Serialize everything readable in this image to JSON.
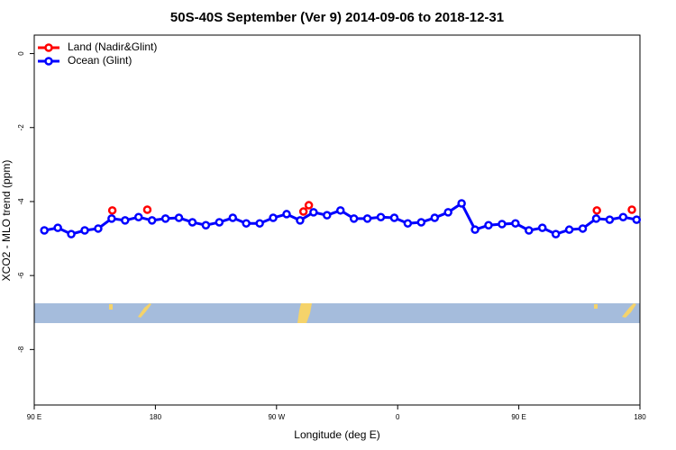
{
  "chart_data": {
    "type": "line",
    "title": "50S-40S September (Ver 9)   2014-09-06 to 2018-12-31",
    "x_label": "Longitude (deg E)",
    "y_label": "XCO2 - MLO trend (ppm)",
    "xlim": [
      90,
      540
    ],
    "xticks": [
      {
        "value": 90,
        "label": "90 E"
      },
      180,
      {
        "value": 270,
        "label": "90 W"
      },
      {
        "value": 360,
        "label": "0"
      },
      {
        "value": 450,
        "label": "90 E"
      },
      {
        "value": 540,
        "label": "180"
      }
    ],
    "ylim": [
      -9.5,
      0.5
    ],
    "yticks": [
      0,
      -2,
      -4,
      -6,
      -8
    ],
    "legend": "top-left",
    "series": [
      {
        "name": "Land (Nadir&Glint)",
        "color": "#ff0000",
        "line": false,
        "x": [
          148,
          174,
          290,
          294,
          508,
          534
        ],
        "values": [
          -4.24,
          -4.22,
          -4.27,
          -4.1,
          -4.24,
          -4.22
        ]
      },
      {
        "name": "Ocean (Glint)",
        "color": "#0000ff",
        "line": true,
        "x": [
          97.5,
          107.5,
          117.5,
          127.5,
          137.5,
          147.5,
          157.5,
          167.5,
          177.5,
          187.5,
          197.5,
          207.5,
          217.5,
          227.5,
          237.5,
          247.5,
          257.5,
          267.5,
          277.5,
          287.5,
          297.5,
          307.5,
          317.5,
          327.5,
          337.5,
          347.5,
          357.5,
          367.5,
          377.5,
          387.5,
          397.5,
          407.5,
          417.5,
          427.5,
          437.5,
          447.5,
          457.5,
          467.5,
          477.5,
          487.5,
          497.5,
          507.5,
          517.5,
          527.5,
          537.5
        ],
        "values": [
          -4.78,
          -4.71,
          -4.88,
          -4.78,
          -4.73,
          -4.46,
          -4.51,
          -4.42,
          -4.51,
          -4.46,
          -4.44,
          -4.56,
          -4.64,
          -4.56,
          -4.44,
          -4.59,
          -4.59,
          -4.44,
          -4.34,
          -4.51,
          -4.29,
          -4.37,
          -4.24,
          -4.46,
          -4.46,
          -4.42,
          -4.44,
          -4.59,
          -4.56,
          -4.44,
          -4.29,
          -4.05,
          -4.76,
          -4.64,
          -4.61,
          -4.59,
          -4.78,
          -4.71,
          -4.88,
          -4.76,
          -4.73,
          -4.46,
          -4.49,
          -4.42,
          -4.49
        ]
      }
    ]
  }
}
